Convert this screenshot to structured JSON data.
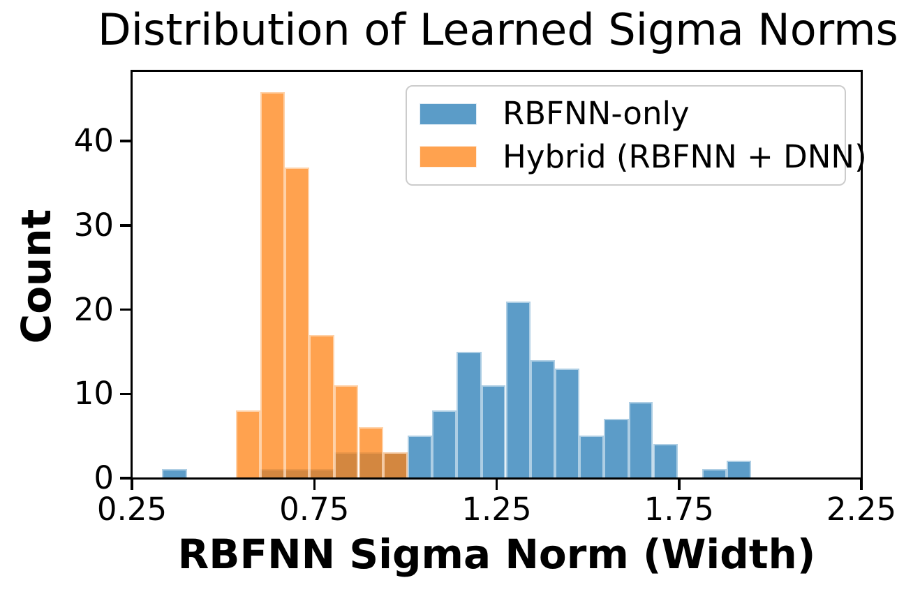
{
  "figure": {
    "background_color": "#ffffff",
    "spine_color": "#000000",
    "text_color": "#000000",
    "legend_border_color": "#cccccc"
  },
  "chart_data": {
    "type": "bar",
    "variant": "overlaid-histogram",
    "title": "Distribution of Learned Sigma Norms",
    "xlabel": "RBFNN Sigma Norm (Width)",
    "ylabel": "Count",
    "xlim": [
      0.25,
      2.25
    ],
    "ylim": [
      0,
      48.3
    ],
    "grid": false,
    "axes_frame": "full-box",
    "x_ticks": [
      {
        "value": 0.25,
        "label": "0.25"
      },
      {
        "value": 0.75,
        "label": "0.75"
      },
      {
        "value": 1.25,
        "label": "1.25"
      },
      {
        "value": 1.75,
        "label": "1.75"
      },
      {
        "value": 2.25,
        "label": "2.25"
      }
    ],
    "y_ticks": [
      {
        "value": 0,
        "label": "0"
      },
      {
        "value": 10,
        "label": "10"
      },
      {
        "value": 20,
        "label": "20"
      },
      {
        "value": 30,
        "label": "30"
      },
      {
        "value": 40,
        "label": "40"
      }
    ],
    "bin_edges": [
      0.331,
      0.399,
      0.466,
      0.534,
      0.601,
      0.669,
      0.736,
      0.804,
      0.871,
      0.939,
      1.006,
      1.074,
      1.141,
      1.209,
      1.276,
      1.344,
      1.411,
      1.479,
      1.546,
      1.614,
      1.681,
      1.749,
      1.816,
      1.884,
      1.951
    ],
    "series": [
      {
        "id": "rbfnn-only",
        "name": "RBFNN-only",
        "base_color": "#1f77b4",
        "alpha": 0.73,
        "fill_rgba": "rgba(31,119,180,0.73)",
        "rendered_hex": "#5b9cc8",
        "counts": [
          1,
          0,
          0,
          0,
          1,
          1,
          1,
          3,
          3,
          3,
          5,
          8,
          15,
          11,
          21,
          14,
          13,
          5,
          7,
          9,
          4,
          0,
          1,
          2
        ],
        "total": 128
      },
      {
        "id": "hybrid",
        "name": "Hybrid (RBFNN + DNN)",
        "base_color": "#ff7f0e",
        "alpha": 0.73,
        "fill_rgba": "rgba(255,127,14,0.73)",
        "rendered_hex": "#ffa24f",
        "counts": [
          0,
          0,
          0,
          8,
          46,
          37,
          17,
          11,
          6,
          3,
          0,
          0,
          0,
          0,
          0,
          0,
          0,
          0,
          0,
          0,
          0,
          0,
          0,
          0
        ],
        "total": 128
      }
    ],
    "overlap_rendered_hex": "#d28740",
    "legend": {
      "position": "upper-right",
      "entries": [
        "RBFNN-only",
        "Hybrid (RBFNN + DNN)"
      ]
    }
  }
}
